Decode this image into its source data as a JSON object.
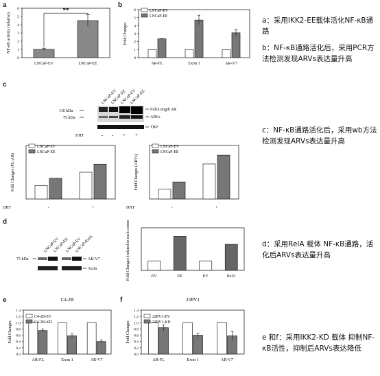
{
  "panel_letters": {
    "a": "a",
    "b": "b",
    "c": "c",
    "d": "d",
    "e": "e",
    "f": "f"
  },
  "notes": {
    "a": "a：采用IKK2-EE载体活化NF-κB通路",
    "b": "b：NF-κB通路活化后，采用PCR方法检测发现ARVs表达量升高",
    "c": "c：NF-κB通路活化后，采用wb方法检测发现ARVs表达量升高",
    "d": "d：采用RelA 载体 NF-κB通路，活化后ARVs表达量升高",
    "e": "e 和f：采用IKK2-KD  载体 抑制NF-κB活性，抑制后ARVs表达降低"
  },
  "blot_c": {
    "lanes": [
      "LNCaP-EV",
      "LNCaP-EE",
      "LNCaP-EV",
      "LNCaP-EE"
    ],
    "markers": [
      "110 kDa",
      "75 kDa"
    ],
    "bands": [
      "Full-Length AR",
      "ARVs",
      "TBP"
    ],
    "dht_label": "DHT",
    "dht": [
      "-",
      "-",
      "+",
      "+"
    ]
  },
  "blot_d": {
    "lanes": [
      "LNCaP-EV",
      "LNCaP-EE",
      "LNCaP-EV",
      "LNCaP-RelA"
    ],
    "markers": [
      "75 kDa"
    ],
    "bands": [
      "AR-V7",
      "Actin"
    ]
  },
  "chart_data": [
    {
      "id": "a",
      "type": "bar",
      "categories": [
        "LNCaP-EV",
        "LNCaP-EE"
      ],
      "values": [
        1.0,
        4.5
      ],
      "errors": [
        0.15,
        0.7
      ],
      "ylabel": "NF-κB activity (relative)",
      "ylim": [
        0,
        6
      ],
      "yticks": [
        0,
        1,
        2,
        3,
        4,
        5,
        6
      ],
      "annotation": "**",
      "colors": [
        "#888888",
        "#888888"
      ]
    },
    {
      "id": "b",
      "type": "bar",
      "categories": [
        "AR-FL",
        "Exon 1",
        "AR-V7"
      ],
      "series": [
        {
          "name": "LNCaP-EV",
          "values": [
            1.0,
            1.0,
            1.0
          ],
          "errors": [
            0,
            0,
            0
          ],
          "color": "#ffffff"
        },
        {
          "name": "LNCaP-EE",
          "values": [
            2.35,
            4.7,
            3.1
          ],
          "errors": [
            0.05,
            0.6,
            0.45
          ],
          "color": "#777777"
        }
      ],
      "ylabel": "Fold Changes",
      "ylim": [
        0,
        6
      ],
      "yticks": [
        0,
        1,
        2,
        3,
        4,
        5,
        6
      ]
    },
    {
      "id": "c1",
      "type": "bar",
      "categories": [
        "-",
        "+"
      ],
      "series": [
        {
          "name": "LNCaP-EV",
          "values": [
            1.0,
            2.0
          ],
          "color": "#ffffff"
        },
        {
          "name": "LNCaP-EE",
          "values": [
            1.55,
            2.6
          ],
          "color": "#777777"
        }
      ],
      "ylabel": "Fold Changes (FL-AR)",
      "ylim": [
        0,
        4
      ],
      "yticks": [],
      "xlabel": "DHT"
    },
    {
      "id": "c2",
      "type": "bar",
      "categories": [
        "-",
        "+"
      ],
      "series": [
        {
          "name": "LNCaP-EV",
          "values": [
            1.0,
            3.6
          ],
          "color": "#ffffff"
        },
        {
          "name": "LNCaP-EE",
          "values": [
            1.75,
            4.5
          ],
          "color": "#777777"
        }
      ],
      "ylabel": "Fold Changes (ARVs)",
      "ylim": [
        0,
        5.5
      ],
      "yticks": [],
      "xlabel": "DHT"
    },
    {
      "id": "d",
      "type": "bar",
      "categories": [
        "EV",
        "EE",
        "EV",
        "RelA"
      ],
      "values": [
        1.0,
        3.6,
        1.0,
        2.75
      ],
      "colors": [
        "#ffffff",
        "#666666",
        "#ffffff",
        "#666666"
      ],
      "ylabel": "Fold Changes (related to each control)",
      "ylim": [
        0,
        4.5
      ],
      "yticks": []
    },
    {
      "id": "e",
      "type": "bar",
      "title": "C4-2B",
      "categories": [
        "AR-FL",
        "Exon 1",
        "AR-V7"
      ],
      "series": [
        {
          "name": "C4-2B-EV",
          "values": [
            1.0,
            1.0,
            1.0
          ],
          "errors": [
            0,
            0,
            0
          ],
          "color": "#ffffff"
        },
        {
          "name": "C4-2B-KD",
          "values": [
            0.75,
            0.58,
            0.4
          ],
          "errors": [
            0.05,
            0.06,
            0.05
          ],
          "color": "#777777"
        }
      ],
      "ylabel": "Fold Changes",
      "ylim": [
        0,
        1.4
      ],
      "yticks": [
        0,
        0.2,
        0.4,
        0.6,
        0.8,
        1.0,
        1.2,
        1.4
      ]
    },
    {
      "id": "f",
      "type": "bar",
      "title": "22RV1",
      "categories": [
        "AR-FL",
        "Exon 1",
        "AR-V7"
      ],
      "series": [
        {
          "name": "22RV1-EV",
          "values": [
            1.0,
            1.0,
            1.0
          ],
          "errors": [
            0,
            0,
            0
          ],
          "color": "#ffffff"
        },
        {
          "name": "22RV1-KD",
          "values": [
            0.84,
            0.6,
            0.58
          ],
          "errors": [
            0.09,
            0.07,
            0.14
          ],
          "color": "#777777"
        }
      ],
      "ylabel": "Fold Changes",
      "ylim": [
        0,
        1.4
      ],
      "yticks": [
        0,
        0.2,
        0.4,
        0.6,
        0.8,
        1.0,
        1.2,
        1.4
      ]
    }
  ]
}
